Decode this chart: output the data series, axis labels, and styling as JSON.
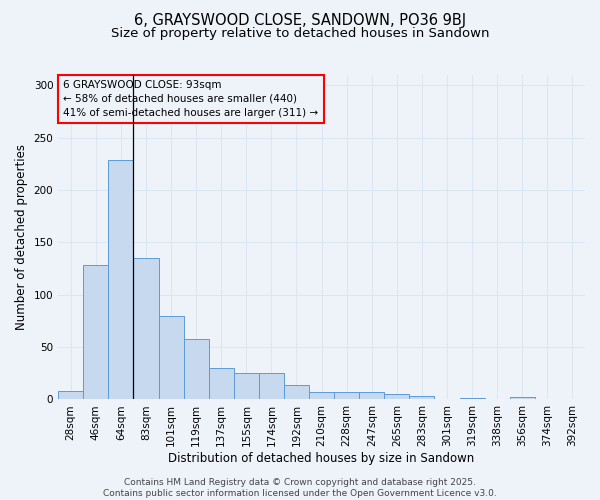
{
  "title": "6, GRAYSWOOD CLOSE, SANDOWN, PO36 9BJ",
  "subtitle": "Size of property relative to detached houses in Sandown",
  "xlabel": "Distribution of detached houses by size in Sandown",
  "ylabel": "Number of detached properties",
  "categories": [
    "28sqm",
    "46sqm",
    "64sqm",
    "83sqm",
    "101sqm",
    "119sqm",
    "137sqm",
    "155sqm",
    "174sqm",
    "192sqm",
    "210sqm",
    "228sqm",
    "247sqm",
    "265sqm",
    "283sqm",
    "301sqm",
    "319sqm",
    "338sqm",
    "356sqm",
    "374sqm",
    "392sqm"
  ],
  "values": [
    8,
    128,
    229,
    135,
    80,
    58,
    30,
    25,
    25,
    14,
    7,
    7,
    7,
    5,
    3,
    0,
    1,
    0,
    2,
    0,
    0
  ],
  "bar_color": "#c6d9ee",
  "bar_edge_color": "#5b9bd5",
  "property_line_x": 2.5,
  "ylim": [
    0,
    310
  ],
  "yticks": [
    0,
    50,
    100,
    150,
    200,
    250,
    300
  ],
  "grid_color": "#dce6f1",
  "background_color": "#eef2f9",
  "annotation_line1": "6 GRAYSWOOD CLOSE: 93sqm",
  "annotation_line2": "← 58% of detached houses are smaller (440)",
  "annotation_line3": "41% of semi-detached houses are larger (311) →",
  "footer_text": "Contains HM Land Registry data © Crown copyright and database right 2025.\nContains public sector information licensed under the Open Government Licence v3.0.",
  "title_fontsize": 10.5,
  "subtitle_fontsize": 9.5,
  "axis_label_fontsize": 8.5,
  "tick_fontsize": 7.5,
  "annotation_fontsize": 7.5,
  "footer_fontsize": 6.5
}
